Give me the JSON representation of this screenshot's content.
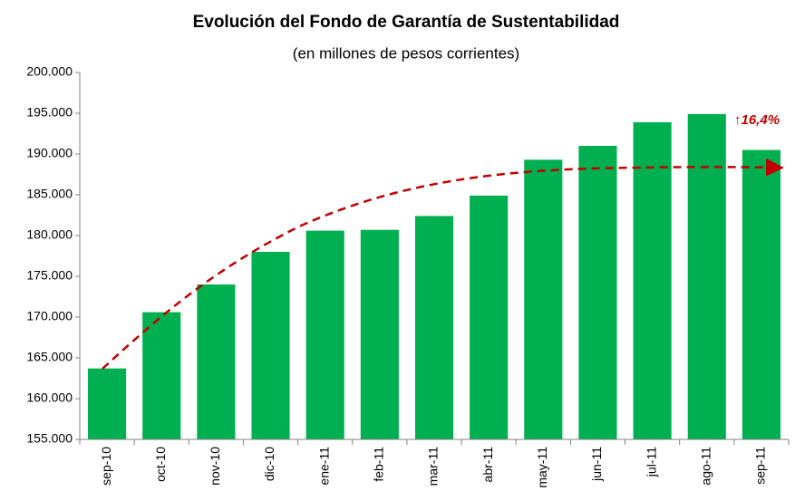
{
  "chart_data": {
    "type": "bar",
    "title": "Evolución del Fondo de Garantía de Sustentabilidad",
    "subtitle": "(en millones de pesos corrientes)",
    "annotation": "↑16,4%",
    "categories": [
      "sep-10",
      "oct-10",
      "nov-10",
      "dic-10",
      "ene-11",
      "feb-11",
      "mar-11",
      "abr-11",
      "may-11",
      "jun-11",
      "jul-11",
      "ago-11",
      "sep-11"
    ],
    "values": [
      163700,
      170600,
      174000,
      178000,
      180600,
      180700,
      182400,
      184900,
      189300,
      191000,
      193900,
      194900,
      190500
    ],
    "color": "#00b050",
    "ylim": [
      155000,
      200000
    ],
    "yticks": [
      {
        "value": 155000,
        "label": "155.000"
      },
      {
        "value": 160000,
        "label": "160.000"
      },
      {
        "value": 165000,
        "label": "165.000"
      },
      {
        "value": 170000,
        "label": "170.000"
      },
      {
        "value": 175000,
        "label": "175.000"
      },
      {
        "value": 180000,
        "label": "180.000"
      },
      {
        "value": 185000,
        "label": "185.000"
      },
      {
        "value": 190000,
        "label": "190.000"
      },
      {
        "value": 195000,
        "label": "195.000"
      },
      {
        "value": 200000,
        "label": "200.000"
      }
    ],
    "grid": false
  }
}
